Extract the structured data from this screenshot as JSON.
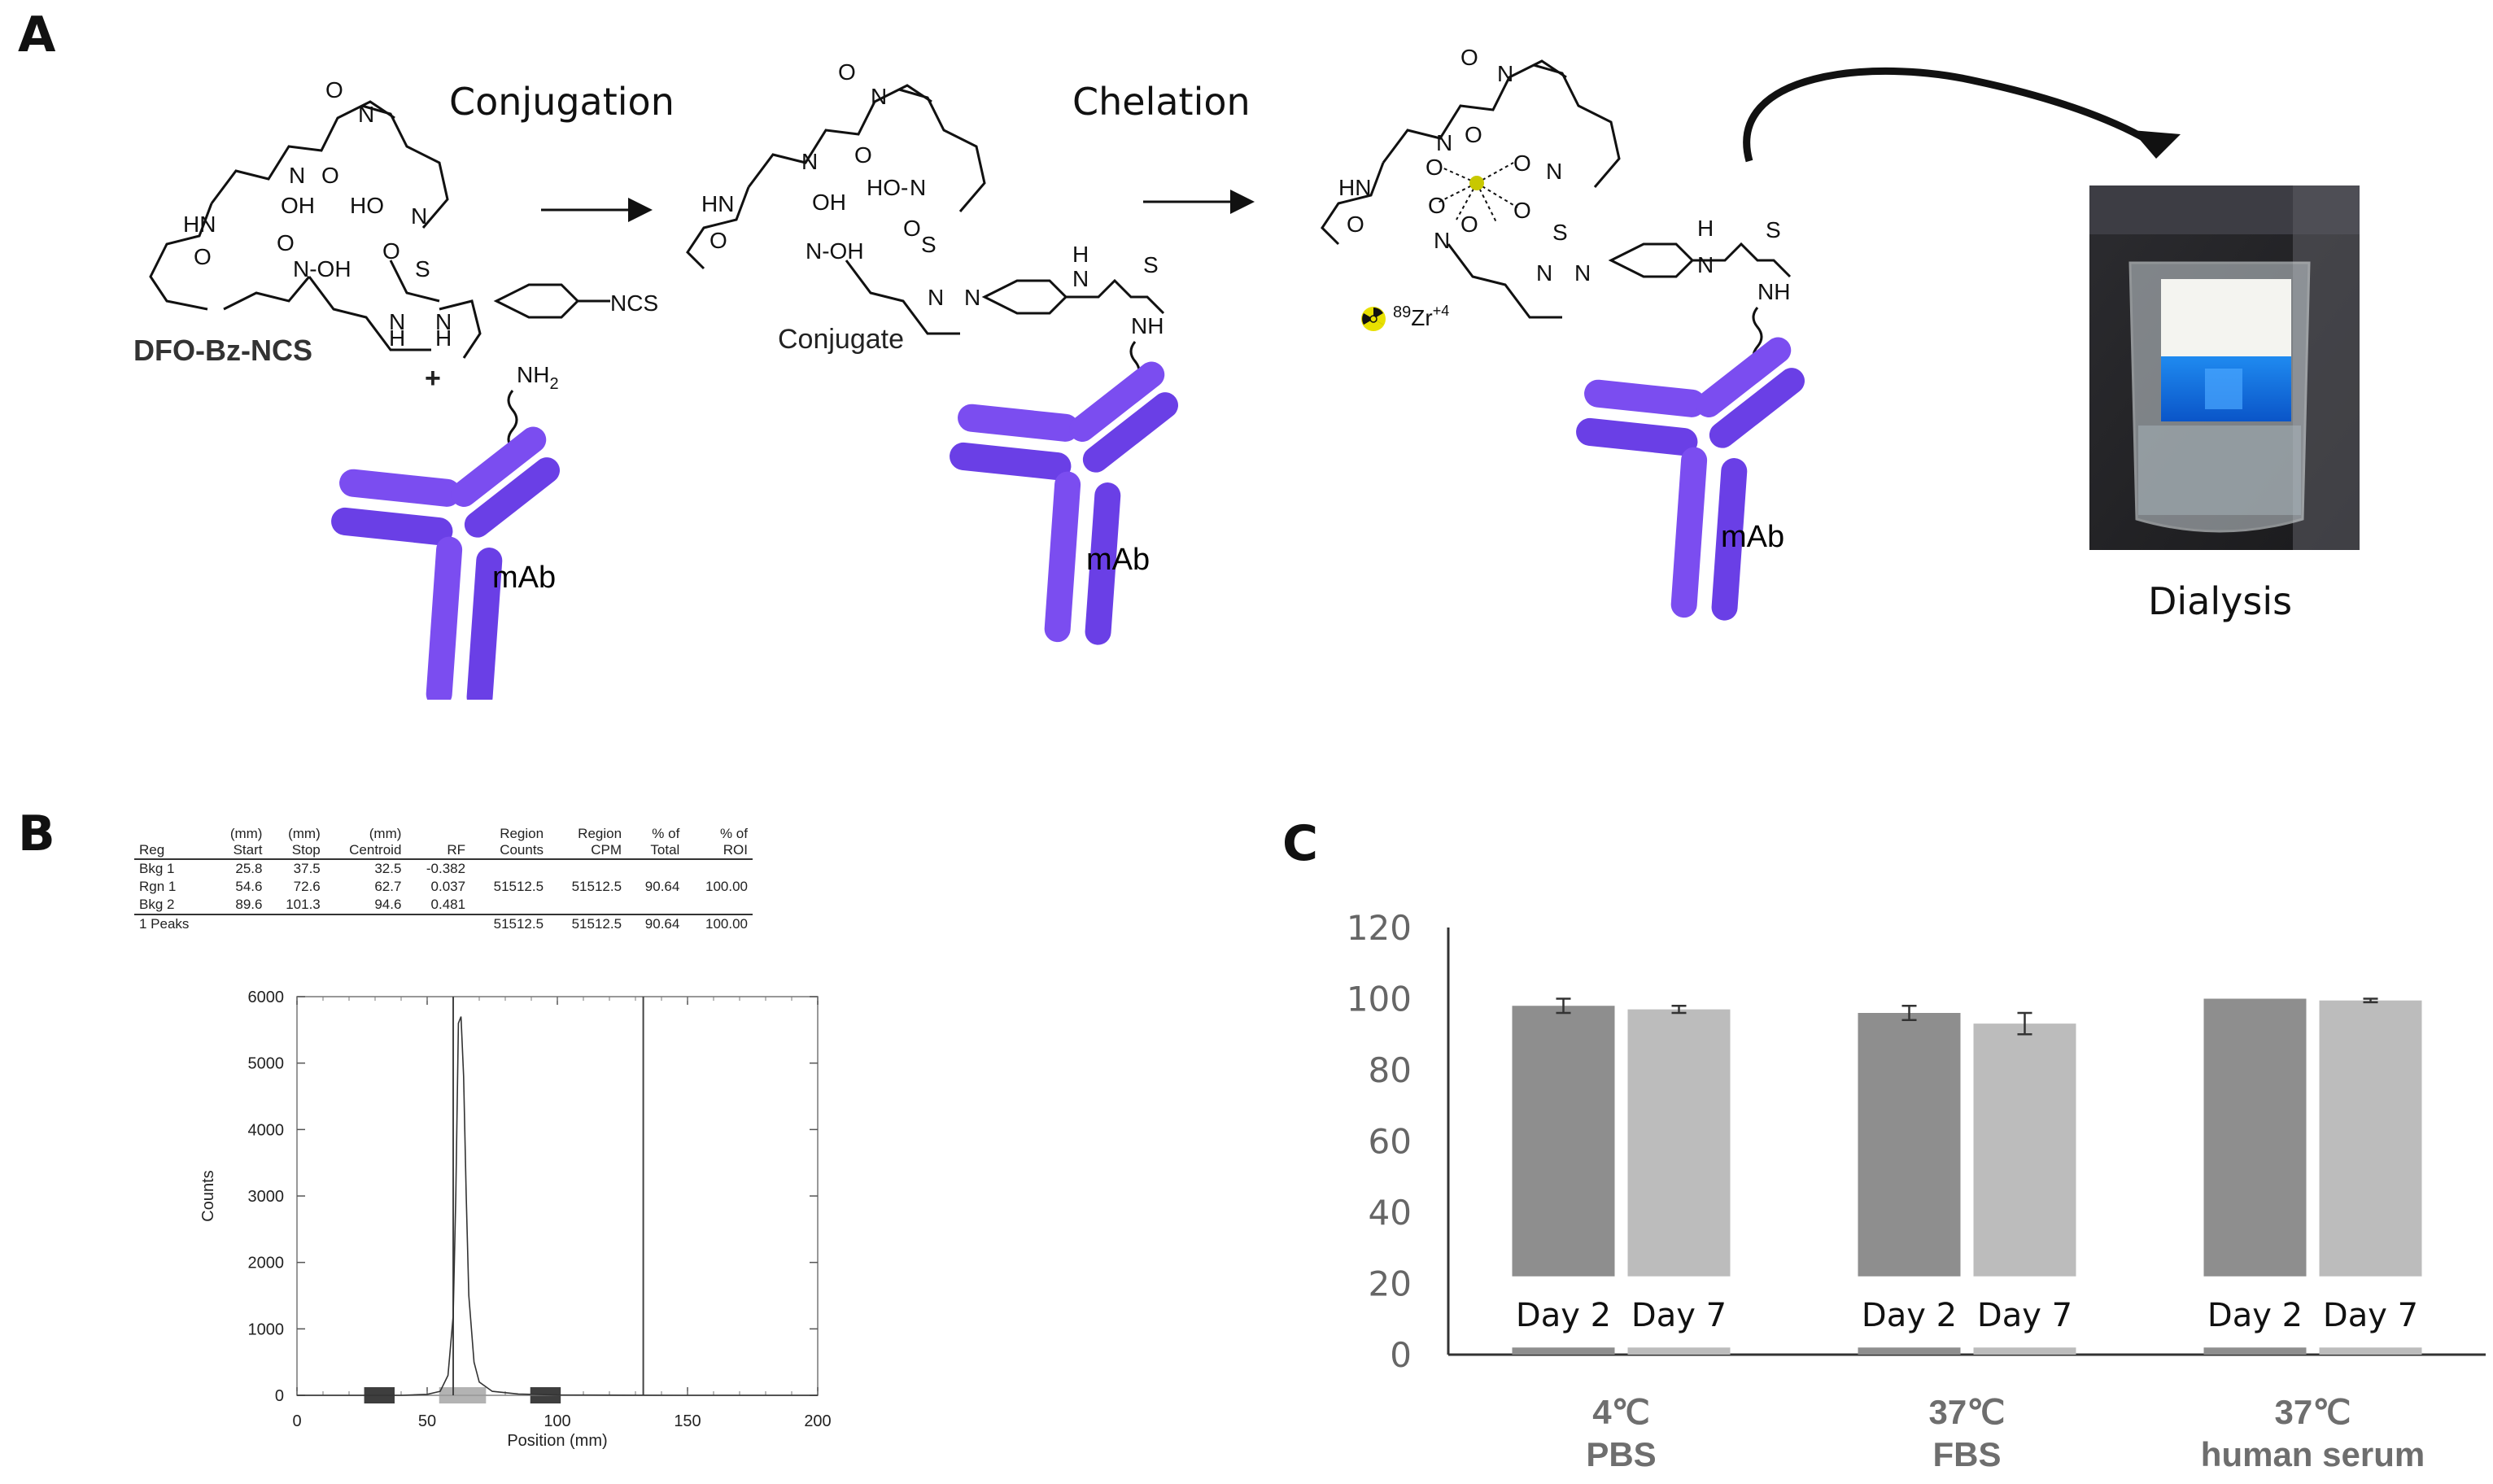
{
  "panel_a": {
    "letter": "A",
    "step_conjugation": "Conjugation",
    "step_chelation": "Chelation",
    "reagent_label": "DFO-Bz-NCS",
    "plus_sign": "+",
    "nh2_label": "NH",
    "nh2_sub": "2",
    "ncs_label": "NCS",
    "mab_label": "mAb",
    "conjugate_label": "Conjugate",
    "isotope_mass": "89",
    "isotope_symbol": "Zr",
    "isotope_charge": "+4",
    "dialysis_label": "Dialysis",
    "colors": {
      "antibody": "#7B4DF0",
      "antibody_dark": "#5A32D0",
      "arrow": "#111111"
    }
  },
  "panel_b": {
    "letter": "B",
    "table": {
      "headers": [
        [
          "",
          "Reg"
        ],
        [
          "(mm)",
          "Start"
        ],
        [
          "(mm)",
          "Stop"
        ],
        [
          "(mm)",
          "Centroid"
        ],
        [
          "",
          "RF"
        ],
        [
          "Region",
          "Counts"
        ],
        [
          "Region",
          "CPM"
        ],
        [
          "% of",
          "Total"
        ],
        [
          "% of",
          "ROI"
        ]
      ],
      "rows": [
        [
          "Bkg  1",
          "25.8",
          "37.5",
          "32.5",
          "-0.382",
          "",
          "",
          "",
          ""
        ],
        [
          "Rgn  1",
          "54.6",
          "72.6",
          "62.7",
          "0.037",
          "51512.5",
          "51512.5",
          "90.64",
          "100.00"
        ],
        [
          "Bkg  2",
          "89.6",
          "101.3",
          "94.6",
          "0.481",
          "",
          "",
          "",
          ""
        ]
      ],
      "footer": [
        "1 Peaks",
        "",
        "",
        "",
        "",
        "51512.5",
        "51512.5",
        "90.64",
        "100.00"
      ]
    },
    "chart_data": {
      "type": "line",
      "xlabel": "Position (mm)",
      "ylabel": "Counts",
      "xlim": [
        0,
        200
      ],
      "ylim": [
        0,
        6000
      ],
      "xticks": [
        "0",
        "50",
        "100",
        "150",
        "200"
      ],
      "yticks": [
        "0",
        "1000",
        "2000",
        "3000",
        "4000",
        "5000",
        "6000"
      ],
      "series": [
        {
          "x": [
            0,
            40,
            50,
            55,
            58,
            60,
            61,
            62,
            63,
            64,
            65,
            66,
            68,
            70,
            75,
            85,
            100,
            150,
            200
          ],
          "y": [
            0,
            0,
            15,
            60,
            300,
            1200,
            3000,
            5600,
            5700,
            4800,
            3000,
            1500,
            500,
            200,
            60,
            20,
            5,
            0,
            0
          ]
        }
      ],
      "vertical_lines_x": [
        60,
        133
      ],
      "regions": [
        {
          "start": 25.8,
          "stop": 37.5,
          "kind": "background"
        },
        {
          "start": 54.6,
          "stop": 72.6,
          "kind": "region"
        },
        {
          "start": 89.6,
          "stop": 101.3,
          "kind": "background"
        }
      ]
    }
  },
  "panel_c": {
    "letter": "C",
    "chart_data": {
      "type": "bar",
      "ylim": [
        0,
        120
      ],
      "yticks": [
        "0",
        "20",
        "40",
        "60",
        "80",
        "100",
        "120"
      ],
      "groups": [
        {
          "line1": "4℃",
          "line2": "PBS"
        },
        {
          "line1": "37℃",
          "line2": "FBS"
        },
        {
          "line1": "37℃",
          "line2": "human serum"
        }
      ],
      "series": [
        {
          "name": "Day 2",
          "values": [
            98,
            96,
            100
          ],
          "errors": [
            2,
            2,
            0
          ],
          "color": "#8e8e8e"
        },
        {
          "name": "Day 7",
          "values": [
            97,
            93,
            99.5
          ],
          "errors": [
            1,
            3,
            0.5
          ],
          "color": "#bcbcbc"
        }
      ]
    }
  }
}
